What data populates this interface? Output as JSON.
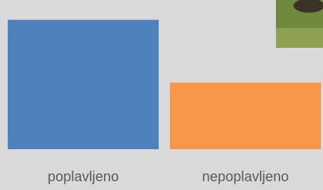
{
  "chart_data": {
    "type": "bar",
    "categories": [
      "poplavljeno",
      "nepoplavljeno"
    ],
    "series": [
      {
        "colors": [
          "#4f81bd",
          "#f79646"
        ],
        "values": [
          66,
          34
        ]
      }
    ],
    "ylim": [
      0,
      70
    ]
  }
}
